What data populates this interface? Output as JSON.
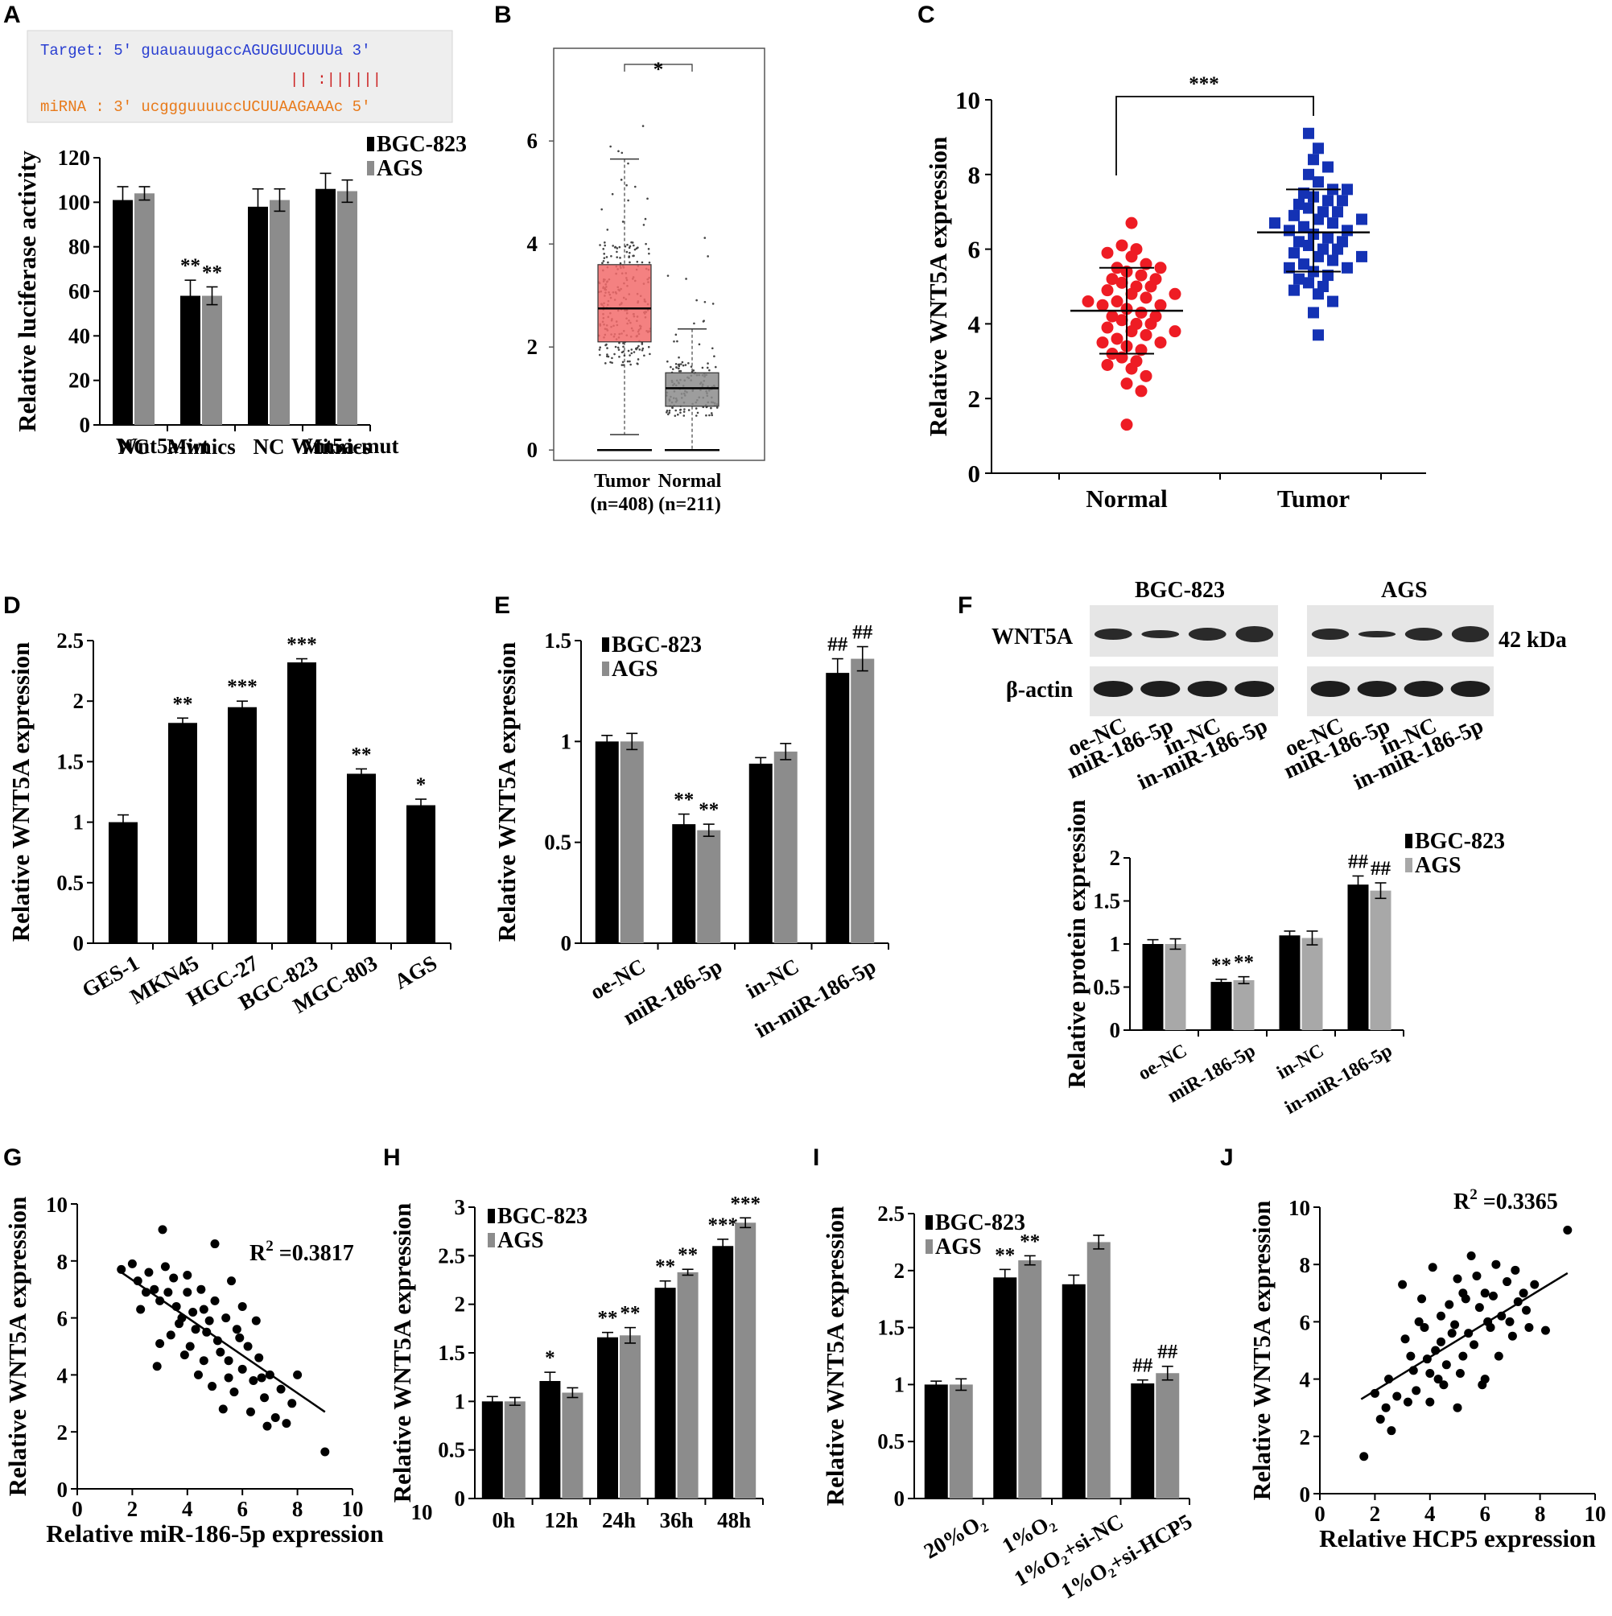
{
  "figure": {
    "colors": {
      "series1": "#000000",
      "series2": "#8c8c8c",
      "tumor_box": "#f26b6b",
      "normal_box": "#8c8c8c",
      "normal_points": "#ee1c24",
      "tumor_points": "#1432b4",
      "seq_target": "#2a3fd1",
      "seq_mirna": "#e87a1a",
      "seq_pair": "#cc2222"
    }
  },
  "chart_data": [
    {
      "panel": "A",
      "type": "bar",
      "sequence": {
        "target": "Target: 5' guauauugaccAGUGUUCUUUa 3'",
        "pairs": "|| :||||||",
        "mirna": "miRNA : 3' ucggguuuuccUCUUAAGAAAc 5'"
      },
      "categories": [
        "NC",
        "Mimics",
        "NC",
        "Mimics"
      ],
      "groups": [
        "Wnt5a-wt",
        "Wnt5a-mut"
      ],
      "series": [
        {
          "name": "BGC-823",
          "values": [
            101,
            58,
            98,
            106
          ],
          "errors": [
            6,
            7,
            8,
            7
          ]
        },
        {
          "name": "AGS",
          "values": [
            104,
            58,
            101,
            105
          ],
          "errors": [
            3,
            4,
            5,
            5
          ]
        }
      ],
      "significance": [
        "",
        "**",
        "",
        ""
      ],
      "significance2": [
        "",
        "**",
        "",
        ""
      ],
      "ylabel": "Relative luciferase activity",
      "ylim": [
        0,
        120
      ],
      "yticks": [
        "0",
        "20",
        "40",
        "60",
        "80",
        "100",
        "120"
      ]
    },
    {
      "panel": "B",
      "type": "box",
      "boxes": [
        {
          "name": "Tumor",
          "n": "(n=408)",
          "q1": 2.1,
          "median": 2.75,
          "q3": 3.6,
          "whisker_low": 0.3,
          "whisker_high": 5.65,
          "bottom_line": 0
        },
        {
          "name": "Normal",
          "n": "(n=211)",
          "q1": 0.85,
          "median": 1.2,
          "q3": 1.5,
          "whisker_low": 0.0,
          "whisker_high": 2.35,
          "bottom_line": 0
        }
      ],
      "significance": "*",
      "ylim": [
        -0.2,
        7.8
      ],
      "yticks": [
        "0",
        "2",
        "4",
        "6"
      ]
    },
    {
      "panel": "C",
      "type": "scatter",
      "categories": [
        "Normal",
        "Tumor"
      ],
      "groups": [
        {
          "name": "Normal",
          "mean": 4.35,
          "sd_low": 3.2,
          "sd_high": 5.5,
          "values": [
            6.7,
            6.1,
            6.0,
            5.9,
            5.8,
            5.6,
            5.5,
            5.4,
            5.3,
            5.2,
            5.1,
            5.0,
            4.9,
            4.8,
            4.7,
            4.6,
            4.5,
            4.4,
            4.3,
            4.2,
            4.1,
            4.0,
            3.9,
            3.8,
            3.7,
            3.6,
            3.5,
            3.4,
            3.3,
            3.1,
            3.0,
            2.8,
            2.6,
            2.4,
            2.2,
            1.3,
            4.5,
            4.0,
            3.5,
            5.0,
            4.8,
            4.2,
            3.8,
            5.5,
            4.6,
            3.2,
            5.2,
            2.9
          ]
        },
        {
          "name": "Tumor",
          "mean": 6.45,
          "sd_low": 5.4,
          "sd_high": 7.6,
          "values": [
            9.1,
            8.7,
            8.4,
            8.2,
            8.0,
            7.8,
            7.6,
            7.5,
            7.4,
            7.3,
            7.2,
            7.1,
            7.0,
            6.9,
            6.8,
            6.7,
            6.6,
            6.5,
            6.4,
            6.3,
            6.2,
            6.1,
            6.0,
            5.9,
            5.8,
            5.7,
            5.6,
            5.5,
            5.4,
            5.3,
            5.2,
            5.1,
            5.0,
            4.8,
            4.6,
            4.3,
            3.7,
            6.5,
            6.0,
            7.0,
            6.8,
            5.5,
            7.3,
            6.2,
            5.8,
            7.6,
            6.7,
            4.9
          ]
        }
      ],
      "significance": "***",
      "ylabel": "Relative WNT5A expression",
      "ylim": [
        0,
        10
      ],
      "yticks": [
        "0",
        "2",
        "4",
        "6",
        "8",
        "10"
      ]
    },
    {
      "panel": "D",
      "type": "bar",
      "categories": [
        "GES-1",
        "MKN45",
        "HGC-27",
        "BGC-823",
        "MGC-803",
        "AGS"
      ],
      "series": [
        {
          "name": "",
          "values": [
            1.0,
            1.82,
            1.95,
            2.32,
            1.4,
            1.14
          ],
          "errors": [
            0.06,
            0.04,
            0.05,
            0.03,
            0.04,
            0.05
          ]
        }
      ],
      "significance": [
        "",
        "**",
        "***",
        "***",
        "**",
        "*"
      ],
      "ylabel": "Relative WNT5A expression",
      "ylim": [
        0,
        2.5
      ],
      "yticks": [
        "0",
        "0.5",
        "1",
        "1.5",
        "2",
        "2.5"
      ]
    },
    {
      "panel": "E",
      "type": "bar",
      "categories": [
        "oe-NC",
        "miR-186-5p",
        "in-NC",
        "in-miR-186-5p"
      ],
      "series": [
        {
          "name": "BGC-823",
          "values": [
            1.0,
            0.59,
            0.89,
            1.34
          ],
          "errors": [
            0.03,
            0.05,
            0.03,
            0.07
          ]
        },
        {
          "name": "AGS",
          "values": [
            1.0,
            0.56,
            0.95,
            1.41
          ],
          "errors": [
            0.04,
            0.03,
            0.04,
            0.06
          ]
        }
      ],
      "significance": [
        "",
        "**",
        "",
        "##"
      ],
      "significance2": [
        "",
        "**",
        "",
        "##"
      ],
      "ylabel": "Relative WNT5A expression",
      "ylim": [
        0,
        1.5
      ],
      "yticks": [
        "0",
        "0.5",
        "1",
        "1.5"
      ]
    },
    {
      "panel": "F",
      "type": "bar",
      "blot": {
        "cells": [
          "BGC-823",
          "AGS"
        ],
        "bands": [
          "WNT5A",
          "β-actin"
        ],
        "size": "42 kDa",
        "lanes": [
          "oe-NC",
          "miR-186-5p",
          "in-NC",
          "in-miR-186-5p"
        ]
      },
      "categories": [
        "oe-NC",
        "miR-186-5p",
        "in-NC",
        "in-miR-186-5p"
      ],
      "series": [
        {
          "name": "BGC-823",
          "values": [
            1.0,
            0.56,
            1.1,
            1.69
          ],
          "errors": [
            0.05,
            0.03,
            0.05,
            0.1
          ]
        },
        {
          "name": "AGS",
          "values": [
            1.0,
            0.58,
            1.07,
            1.62
          ],
          "errors": [
            0.06,
            0.04,
            0.08,
            0.09
          ]
        }
      ],
      "significance": [
        "",
        "**",
        "",
        "##"
      ],
      "significance2": [
        "",
        "**",
        "",
        "##"
      ],
      "ylabel": "Relative protein expression",
      "ylim": [
        0,
        2
      ],
      "yticks": [
        "0",
        "0.5",
        "1",
        "1.5",
        "2"
      ]
    },
    {
      "panel": "G",
      "type": "scatter",
      "points": [
        [
          1.6,
          7.7
        ],
        [
          2.0,
          7.9
        ],
        [
          2.2,
          7.3
        ],
        [
          2.5,
          6.9
        ],
        [
          2.6,
          7.6
        ],
        [
          2.8,
          7.0
        ],
        [
          3.0,
          6.6
        ],
        [
          3.1,
          9.1
        ],
        [
          3.2,
          7.8
        ],
        [
          3.3,
          6.9
        ],
        [
          3.5,
          7.4
        ],
        [
          3.6,
          6.4
        ],
        [
          3.8,
          6.0
        ],
        [
          4.0,
          7.5
        ],
        [
          4.0,
          6.9
        ],
        [
          4.2,
          6.2
        ],
        [
          4.3,
          5.6
        ],
        [
          4.5,
          7.0
        ],
        [
          4.6,
          6.3
        ],
        [
          4.8,
          5.9
        ],
        [
          5.0,
          8.6
        ],
        [
          5.0,
          6.6
        ],
        [
          5.1,
          5.2
        ],
        [
          5.2,
          4.8
        ],
        [
          5.4,
          6.0
        ],
        [
          5.5,
          4.5
        ],
        [
          5.6,
          7.3
        ],
        [
          5.8,
          5.6
        ],
        [
          6.0,
          4.2
        ],
        [
          6.0,
          6.4
        ],
        [
          6.2,
          5.0
        ],
        [
          6.4,
          3.8
        ],
        [
          6.6,
          4.6
        ],
        [
          6.8,
          3.2
        ],
        [
          7.0,
          4.0
        ],
        [
          7.2,
          2.5
        ],
        [
          7.4,
          3.5
        ],
        [
          7.8,
          3.0
        ],
        [
          8.0,
          4.0
        ],
        [
          9.0,
          1.3
        ],
        [
          2.9,
          4.3
        ],
        [
          3.9,
          4.7
        ],
        [
          4.4,
          4.0
        ],
        [
          4.9,
          3.6
        ],
        [
          5.3,
          2.8
        ],
        [
          5.7,
          3.4
        ],
        [
          6.3,
          2.7
        ],
        [
          6.9,
          2.2
        ],
        [
          3.4,
          5.4
        ],
        [
          4.7,
          5.5
        ],
        [
          2.3,
          6.3
        ],
        [
          3.7,
          5.8
        ],
        [
          5.9,
          5.3
        ],
        [
          6.5,
          5.9
        ],
        [
          4.1,
          5.0
        ],
        [
          3.0,
          5.1
        ],
        [
          5.5,
          3.9
        ],
        [
          6.7,
          3.9
        ],
        [
          7.6,
          2.3
        ],
        [
          4.6,
          4.5
        ]
      ],
      "fit": {
        "x0": 1.6,
        "y0": 7.6,
        "x1": 9.0,
        "y1": 2.7
      },
      "annotation": {
        "r": "R",
        "sup": "2",
        "value": " =0.3817"
      },
      "xlabel": "Relative miR-186-5p expression",
      "ylabel": "Relative WNT5A expression",
      "xlim": [
        0,
        10
      ],
      "ylim": [
        0,
        10
      ],
      "xticks": [
        "0",
        "2",
        "4",
        "6",
        "8",
        "10"
      ],
      "yticks": [
        "0",
        "2",
        "4",
        "6",
        "8",
        "10"
      ]
    },
    {
      "panel": "H",
      "type": "bar",
      "categories": [
        "0h",
        "12h",
        "24h",
        "36h",
        "48h"
      ],
      "series": [
        {
          "name": "BGC-823",
          "values": [
            1.0,
            1.21,
            1.66,
            2.17,
            2.6
          ],
          "errors": [
            0.05,
            0.09,
            0.05,
            0.07,
            0.07
          ]
        },
        {
          "name": "AGS",
          "values": [
            1.0,
            1.09,
            1.68,
            2.33,
            2.84
          ],
          "errors": [
            0.04,
            0.05,
            0.08,
            0.03,
            0.05
          ]
        }
      ],
      "significance": [
        "",
        "*",
        "**",
        "**",
        "***"
      ],
      "significance2": [
        "",
        "",
        "**",
        "**",
        "***"
      ],
      "ylabel": "Relative WNT5A expression",
      "ylim": [
        0,
        3
      ],
      "yticks": [
        "0",
        "0.5",
        "1",
        "1.5",
        "2",
        "2.5",
        "3"
      ],
      "axis_label_extra": "10"
    },
    {
      "panel": "I",
      "type": "bar",
      "categories": [
        "20%O₂",
        "1%O₂",
        "1%O₂+si-NC",
        "1%O₂+si-HCP5"
      ],
      "series": [
        {
          "name": "BGC-823",
          "values": [
            1.0,
            1.94,
            1.88,
            1.01
          ],
          "errors": [
            0.03,
            0.07,
            0.08,
            0.03
          ]
        },
        {
          "name": "AGS",
          "values": [
            1.0,
            2.09,
            2.25,
            1.1
          ],
          "errors": [
            0.05,
            0.04,
            0.06,
            0.06
          ]
        }
      ],
      "significance": [
        "",
        "**",
        "",
        "##"
      ],
      "significance2": [
        "",
        "**",
        "",
        "##"
      ],
      "ylabel": "Relative WNT5A expression",
      "ylim": [
        0,
        2.5
      ],
      "yticks": [
        "0",
        "0.5",
        "1",
        "1.5",
        "2",
        "2.5"
      ]
    },
    {
      "panel": "J",
      "type": "scatter",
      "points": [
        [
          1.6,
          1.3
        ],
        [
          2.0,
          3.5
        ],
        [
          2.2,
          2.6
        ],
        [
          2.4,
          3.0
        ],
        [
          2.6,
          2.2
        ],
        [
          2.8,
          3.4
        ],
        [
          3.0,
          7.3
        ],
        [
          3.1,
          5.4
        ],
        [
          3.3,
          4.8
        ],
        [
          3.5,
          3.6
        ],
        [
          3.6,
          6.0
        ],
        [
          3.8,
          5.8
        ],
        [
          4.0,
          4.2
        ],
        [
          4.1,
          7.9
        ],
        [
          4.2,
          5.0
        ],
        [
          4.4,
          6.2
        ],
        [
          4.5,
          3.8
        ],
        [
          4.6,
          4.5
        ],
        [
          4.8,
          5.6
        ],
        [
          5.0,
          3.0
        ],
        [
          5.0,
          7.5
        ],
        [
          5.2,
          4.8
        ],
        [
          5.3,
          6.8
        ],
        [
          5.5,
          8.3
        ],
        [
          5.6,
          5.2
        ],
        [
          5.8,
          6.5
        ],
        [
          6.0,
          4.0
        ],
        [
          6.0,
          7.0
        ],
        [
          6.2,
          5.8
        ],
        [
          6.4,
          8.0
        ],
        [
          6.6,
          6.2
        ],
        [
          6.8,
          7.4
        ],
        [
          7.0,
          5.5
        ],
        [
          7.2,
          6.7
        ],
        [
          7.4,
          7.0
        ],
        [
          7.6,
          5.8
        ],
        [
          7.8,
          7.3
        ],
        [
          8.2,
          5.7
        ],
        [
          9.0,
          9.2
        ],
        [
          2.5,
          4.0
        ],
        [
          3.2,
          3.2
        ],
        [
          3.9,
          4.7
        ],
        [
          4.3,
          4.0
        ],
        [
          4.7,
          6.6
        ],
        [
          5.1,
          4.2
        ],
        [
          5.4,
          5.6
        ],
        [
          5.9,
          3.8
        ],
        [
          6.3,
          6.9
        ],
        [
          6.9,
          6.0
        ],
        [
          7.5,
          6.4
        ],
        [
          3.4,
          4.3
        ],
        [
          4.9,
          5.9
        ],
        [
          5.7,
          7.6
        ],
        [
          6.5,
          4.8
        ],
        [
          4.0,
          3.2
        ],
        [
          3.7,
          6.8
        ],
        [
          6.1,
          6.0
        ],
        [
          5.2,
          7.0
        ],
        [
          4.4,
          5.3
        ],
        [
          7.1,
          7.8
        ]
      ],
      "fit": {
        "x0": 1.5,
        "y0": 3.3,
        "x1": 9.0,
        "y1": 7.7
      },
      "annotation": {
        "r": "R",
        "sup": "2",
        "value": " =0.3365"
      },
      "xlabel": "Relative HCP5 expression",
      "ylabel": "Relative WNT5A expression",
      "xlim": [
        0,
        10
      ],
      "ylim": [
        0,
        10
      ],
      "xticks": [
        "0",
        "2",
        "4",
        "6",
        "8",
        "10"
      ],
      "yticks": [
        "0",
        "2",
        "4",
        "6",
        "8",
        "10"
      ]
    }
  ]
}
